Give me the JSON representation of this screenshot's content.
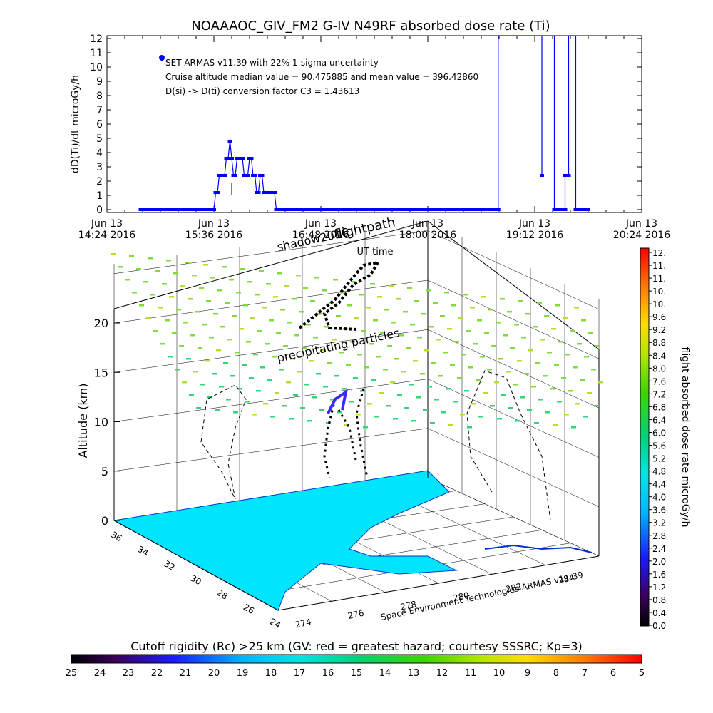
{
  "title": "NOAAAOC_GIV_FM2 G-IV    N49RF  absorbed dose rate (Ti)",
  "colors": {
    "series": "#0000ff",
    "axis": "#000000",
    "ocean": "#00e5ff",
    "land_outline": "#0033cc",
    "shadow": "#000000",
    "particles": "#7fdc3a"
  },
  "chart_data": [
    {
      "type": "line",
      "name": "dose-rate-timeseries",
      "ylabel": "dD(Ti)/dt microGy/h",
      "xlabel": "UT time",
      "ylim": [
        0,
        12
      ],
      "yticks": [
        "0",
        "1",
        "2",
        "3",
        "4",
        "5",
        "6",
        "7",
        "8",
        "9",
        "10",
        "11",
        "12"
      ],
      "xlim_hours": [
        14.4,
        20.4
      ],
      "xticks": [
        {
          "h": 14.4,
          "d": "Jun 13",
          "t": "14:24 2016"
        },
        {
          "h": 15.6,
          "d": "Jun 13",
          "t": "15:36 2016"
        },
        {
          "h": 16.8,
          "d": "Jun 13",
          "t": "16:48 2016"
        },
        {
          "h": 18.0,
          "d": "Jun 13",
          "t": "18:00 2016"
        },
        {
          "h": 19.2,
          "d": "Jun 13",
          "t": "19:12 2016"
        },
        {
          "h": 20.4,
          "d": "Jun 13",
          "t": "20:24 2016"
        }
      ],
      "annotations": [
        "SET ARMAS v11.39 with 22% 1-sigma uncertainty",
        "Cruise altitude median value = 90.475885 and mean value = 396.42860",
        "D(si) -> D(ti) conversion factor C3 = 1.43613"
      ],
      "series": [
        {
          "x_hours": [
            14.78,
            14.9,
            15.0,
            15.1,
            15.2,
            15.3,
            15.4,
            15.5,
            15.6,
            15.62,
            15.64,
            15.66,
            15.68,
            15.7,
            15.72,
            15.74,
            15.76,
            15.78,
            15.8,
            15.82,
            15.84,
            15.86,
            15.88,
            15.9,
            15.92,
            15.94,
            15.96,
            15.98,
            16.0,
            16.02,
            16.04,
            16.06,
            16.08,
            16.1,
            16.12,
            16.14,
            16.16,
            16.18,
            16.2,
            16.22,
            16.24,
            16.26,
            16.28,
            16.3,
            16.32,
            16.34,
            16.36,
            16.4,
            16.5,
            16.7,
            17.0,
            17.3,
            17.6,
            17.9,
            18.2,
            18.5,
            18.7,
            18.79,
            18.79,
            19.28,
            19.28,
            19.28,
            19.42,
            19.42,
            19.42,
            19.54,
            19.54,
            19.58,
            19.58,
            19.66,
            19.66,
            19.7,
            19.8
          ],
          "values": [
            0,
            0,
            0,
            0,
            0,
            0,
            0,
            0,
            0,
            1.2,
            1.2,
            2.4,
            2.4,
            2.4,
            2.4,
            3.6,
            3.6,
            4.8,
            3.6,
            2.4,
            2.4,
            3.6,
            3.6,
            3.6,
            3.6,
            2.4,
            2.4,
            2.4,
            3.6,
            3.6,
            2.4,
            2.4,
            1.2,
            1.2,
            2.4,
            2.4,
            1.2,
            1.2,
            1.2,
            1.2,
            1.2,
            1.2,
            1.2,
            0,
            0,
            0,
            0,
            0,
            0,
            0,
            0,
            0,
            0,
            0,
            0,
            0,
            0,
            0,
            12.5,
            12.5,
            2.4,
            12.5,
            12.5,
            0,
            0,
            0,
            2.4,
            2.4,
            12.5,
            12.5,
            0,
            0,
            0
          ]
        }
      ]
    },
    {
      "type": "scatter",
      "name": "3d-flight-dose-map",
      "zlabel": "Altitude (km)",
      "zlim": [
        0,
        20
      ],
      "zticks": [
        "0",
        "5",
        "10",
        "15",
        "20"
      ],
      "lat_ticks": [
        "36",
        "34",
        "32",
        "30",
        "28",
        "26",
        "24"
      ],
      "lon_ticks": [
        "274",
        "276",
        "278",
        "280",
        "282",
        "284"
      ],
      "labels": {
        "shadow": "shadow2016",
        "flightpath": "flightpath",
        "precip": "precipitating particles",
        "credit": "Space Environment Technologies ARMAS v11.39"
      }
    },
    {
      "type": "heatmap",
      "name": "dose-colorbar",
      "label": "flight absorbed dose rate microGy/h",
      "ticks": [
        "12.",
        "11.",
        "11.",
        "10.",
        "10.",
        "9.6",
        "9.2",
        "8.8",
        "8.4",
        "8.0",
        "7.6",
        "7.2",
        "6.8",
        "6.4",
        "6.0",
        "5.6",
        "5.2",
        "4.8",
        "4.4",
        "4.0",
        "3.6",
        "3.2",
        "2.8",
        "2.4",
        "2.0",
        "1.6",
        "1.2",
        "0.8",
        "0.4",
        "0.0"
      ]
    },
    {
      "type": "heatmap",
      "name": "rigidity-colorbar",
      "title": "Cutoff rigidity (Rc) >25 km (GV: red = greatest hazard; courtesy SSSRC; Kp=3)",
      "ticks": [
        "25",
        "24",
        "23",
        "22",
        "21",
        "20",
        "19",
        "18",
        "17",
        "16",
        "15",
        "14",
        "13",
        "12",
        "11",
        "10",
        "9",
        "8",
        "7",
        "6",
        "5"
      ]
    }
  ]
}
